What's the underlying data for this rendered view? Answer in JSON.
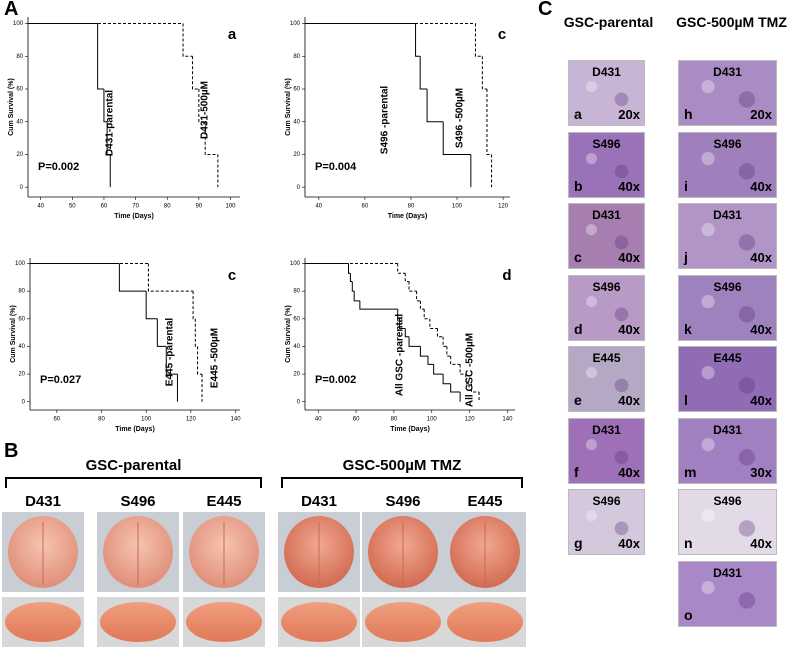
{
  "panel_labels": [
    "A",
    "B",
    "C"
  ],
  "chart_data": [
    {
      "type": "line",
      "letter": "a",
      "annotation": "P=0.002",
      "xlabel": "Time (Days)",
      "ylabel": "Cum Survival (%)",
      "xlim": [
        36,
        103
      ],
      "xticks": [
        40,
        50,
        60,
        70,
        80,
        90,
        100
      ],
      "ylim": [
        -6,
        104
      ],
      "yticks": [
        0,
        20,
        40,
        60,
        80,
        100
      ],
      "series": [
        {
          "name": "D431-parental",
          "color": "#000000",
          "linestyle": "solid",
          "x": [
            36,
            58,
            60,
            61,
            62
          ],
          "values": [
            100,
            60,
            40,
            20,
            0
          ]
        },
        {
          "name": "D431-500µM",
          "color": "#000000",
          "linestyle": "dashed",
          "x": [
            36,
            85,
            88,
            90,
            92,
            96
          ],
          "values": [
            100,
            80,
            60,
            40,
            20,
            0
          ]
        }
      ]
    },
    {
      "type": "line",
      "letter": "c",
      "annotation": "P=0.004",
      "xlabel": "Time (Days)",
      "ylabel": "Cum Survival (%)",
      "xlim": [
        34,
        123
      ],
      "xticks": [
        40,
        60,
        80,
        100,
        120
      ],
      "ylim": [
        -6,
        104
      ],
      "yticks": [
        0,
        20,
        40,
        60,
        80,
        100
      ],
      "series": [
        {
          "name": "S496 -parental",
          "color": "#000000",
          "linestyle": "solid",
          "x": [
            34,
            82,
            84,
            87,
            94,
            106
          ],
          "values": [
            100,
            80,
            60,
            40,
            20,
            0
          ]
        },
        {
          "name": "S496 -500µM",
          "color": "#000000",
          "linestyle": "dashed",
          "x": [
            34,
            108,
            111,
            113,
            115
          ],
          "values": [
            100,
            80,
            60,
            20,
            0
          ]
        }
      ]
    },
    {
      "type": "line",
      "letter": "c",
      "annotation": "P=0.027",
      "xlabel": "Time (Days)",
      "ylabel": "Cum Survival (%)",
      "xlim": [
        48,
        142
      ],
      "xticks": [
        60,
        80,
        100,
        120,
        140
      ],
      "ylim": [
        -6,
        104
      ],
      "yticks": [
        0,
        20,
        40,
        60,
        80,
        100
      ],
      "series": [
        {
          "name": "E445 -parental",
          "color": "#000000",
          "linestyle": "solid",
          "x": [
            48,
            88,
            100,
            105,
            109,
            114
          ],
          "values": [
            100,
            80,
            60,
            40,
            20,
            0
          ]
        },
        {
          "name": "E445 -500µM",
          "color": "#000000",
          "linestyle": "dashed",
          "x": [
            48,
            101,
            121,
            122,
            123,
            125
          ],
          "values": [
            100,
            80,
            60,
            40,
            20,
            0
          ]
        }
      ]
    },
    {
      "type": "line",
      "letter": "d",
      "annotation": "P=0.002",
      "xlabel": "Time (Days)",
      "ylabel": "Cum Survival (%)",
      "xlim": [
        33,
        144
      ],
      "xticks": [
        40,
        60,
        80,
        100,
        120,
        140
      ],
      "ylim": [
        -6,
        104
      ],
      "yticks": [
        0,
        20,
        40,
        60,
        80,
        100
      ],
      "series": [
        {
          "name": "All GSC -parental",
          "color": "#000000",
          "linestyle": "solid",
          "x": [
            33,
            56,
            57,
            58,
            59,
            62,
            82,
            83,
            86,
            88,
            94,
            98,
            101,
            106,
            110,
            115
          ],
          "values": [
            100,
            93,
            87,
            80,
            73,
            67,
            60,
            53,
            47,
            40,
            33,
            27,
            20,
            13,
            7,
            0
          ]
        },
        {
          "name": "All GSC -500µM",
          "color": "#000000",
          "linestyle": "dashed",
          "x": [
            33,
            82,
            86,
            88,
            92,
            94,
            96,
            99,
            103,
            106,
            108,
            110,
            115,
            118,
            121,
            125
          ],
          "values": [
            100,
            93,
            87,
            80,
            73,
            67,
            60,
            53,
            47,
            40,
            33,
            27,
            20,
            13,
            7,
            0
          ]
        }
      ]
    }
  ],
  "brains": {
    "groups": [
      {
        "title": "GSC-parental",
        "samples": [
          "D431",
          "S496",
          "E445"
        ]
      },
      {
        "title": "GSC-500µM TMZ",
        "samples": [
          "D431",
          "S496",
          "E445"
        ]
      }
    ]
  },
  "histology": {
    "columns": [
      {
        "header": "GSC-parental",
        "tiles": [
          {
            "sample": "D431",
            "letter": "a",
            "mag": "20x"
          },
          {
            "sample": "S496",
            "letter": "b",
            "mag": "40x"
          },
          {
            "sample": "D431",
            "letter": "c",
            "mag": "40x"
          },
          {
            "sample": "S496",
            "letter": "d",
            "mag": "40x"
          },
          {
            "sample": "E445",
            "letter": "e",
            "mag": "40x"
          },
          {
            "sample": "D431",
            "letter": "f",
            "mag": "40x"
          },
          {
            "sample": "S496",
            "letter": "g",
            "mag": "40x"
          }
        ]
      },
      {
        "header": "GSC-500µM TMZ",
        "tiles": [
          {
            "sample": "D431",
            "letter": "h",
            "mag": "20x"
          },
          {
            "sample": "S496",
            "letter": "i",
            "mag": "40x"
          },
          {
            "sample": "D431",
            "letter": "j",
            "mag": "40x"
          },
          {
            "sample": "S496",
            "letter": "k",
            "mag": "40x"
          },
          {
            "sample": "E445",
            "letter": "l",
            "mag": "40x"
          },
          {
            "sample": "D431",
            "letter": "m",
            "mag": "30x"
          },
          {
            "sample": "S496",
            "letter": "n",
            "mag": "40x"
          },
          {
            "sample": "D431",
            "letter": "o"
          }
        ]
      }
    ]
  }
}
